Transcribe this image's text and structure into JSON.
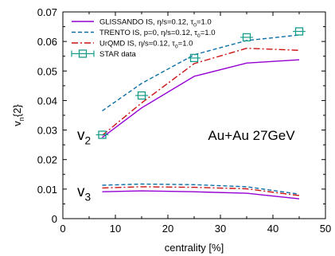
{
  "chart_data": {
    "type": "line",
    "xlabel": "centrality [%]",
    "ylabel": "v",
    "ylabel_sub": "n",
    "ylabel_suffix": "{2}",
    "xlim": [
      0,
      50
    ],
    "ylim": [
      0,
      0.07
    ],
    "xticks": [
      "0",
      "10",
      "20",
      "30",
      "40",
      "50"
    ],
    "yticks": [
      "0",
      "0.01",
      "0.02",
      "0.03",
      "0.04",
      "0.05",
      "0.06",
      "0.07"
    ],
    "grid": false,
    "legend_position": "top-left",
    "annotations": {
      "system_label": "Au+Au 27GeV",
      "v2_label": "v",
      "v2_sub": "2",
      "v3_label": "v",
      "v3_sub": "3"
    },
    "legend": [
      {
        "name": "GLISSANDO IS, η/s=0.12, τ",
        "sub": "0",
        "tail": "=1.0",
        "color": "#9400d3",
        "style": "solid"
      },
      {
        "name": "TRENTO IS, p=0, η/s=0.12, τ",
        "sub": "0",
        "tail": "=1.0",
        "color": "#0a6fa8",
        "style": "dash"
      },
      {
        "name": "UrQMD IS, η/s=0.12, τ",
        "sub": "0",
        "tail": "=1.0",
        "color": "#cc1111",
        "style": "dashdot"
      },
      {
        "name": "STAR data",
        "sub": "",
        "tail": "",
        "color": "#179c8a",
        "style": "marker"
      }
    ],
    "series": [
      {
        "name": "GLISSANDO IS, η/s=0.12, τ0=1.0 (v2)",
        "color": "#9400d3",
        "style": "solid",
        "x": [
          7.5,
          15,
          25,
          35,
          45
        ],
        "y": [
          0.0275,
          0.0375,
          0.0482,
          0.0527,
          0.0538
        ]
      },
      {
        "name": "TRENTO IS, p=0, η/s=0.12, τ0=1.0 (v2)",
        "color": "#0a6fa8",
        "style": "dash",
        "x": [
          7.5,
          15,
          25,
          35,
          45
        ],
        "y": [
          0.0365,
          0.0458,
          0.0555,
          0.0603,
          0.0622
        ]
      },
      {
        "name": "UrQMD IS, η/s=0.12, τ0=1.0 (v2)",
        "color": "#cc1111",
        "style": "dashdot",
        "x": [
          7.5,
          15,
          25,
          35,
          45
        ],
        "y": [
          0.0282,
          0.0392,
          0.0525,
          0.0577,
          0.057
        ]
      },
      {
        "name": "GLISSANDO IS, η/s=0.12, τ0=1.0 (v3)",
        "color": "#9400d3",
        "style": "solid",
        "x": [
          7.5,
          15,
          25,
          35,
          45
        ],
        "y": [
          0.0091,
          0.0094,
          0.0091,
          0.0086,
          0.0067
        ]
      },
      {
        "name": "TRENTO IS, p=0, η/s=0.12, τ0=1.0 (v3)",
        "color": "#0a6fa8",
        "style": "dash",
        "x": [
          7.5,
          15,
          25,
          35,
          45
        ],
        "y": [
          0.0113,
          0.0117,
          0.0115,
          0.0108,
          0.0083
        ]
      },
      {
        "name": "UrQMD IS, η/s=0.12, τ0=1.0 (v3)",
        "color": "#cc1111",
        "style": "dashdot",
        "x": [
          7.5,
          15,
          25,
          35,
          45
        ],
        "y": [
          0.0104,
          0.0108,
          0.0106,
          0.0101,
          0.0078
        ]
      }
    ],
    "data_points": {
      "name": "STAR data",
      "color": "#179c8a",
      "x": [
        7.5,
        15,
        25,
        35,
        45
      ],
      "y": [
        0.0284,
        0.0417,
        0.0544,
        0.0614,
        0.0634
      ],
      "xerr": 1.2
    }
  }
}
